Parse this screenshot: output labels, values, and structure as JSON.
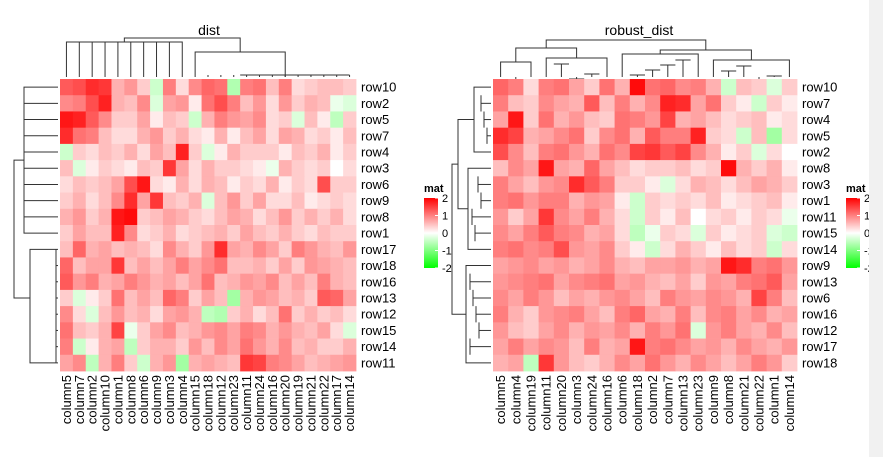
{
  "panels": [
    {
      "title": "dist",
      "rows": [
        "row10",
        "row2",
        "row5",
        "row7",
        "row4",
        "row3",
        "row6",
        "row9",
        "row8",
        "row1",
        "row17",
        "row18",
        "row16",
        "row13",
        "row12",
        "row15",
        "row14",
        "row11"
      ],
      "columns": [
        "column5",
        "column7",
        "column2",
        "column10",
        "column1",
        "column8",
        "column6",
        "column9",
        "column3",
        "column4",
        "column15",
        "column18",
        "column12",
        "column23",
        "column11",
        "column24",
        "column16",
        "column20",
        "column19",
        "column21",
        "column22",
        "column17",
        "column14"
      ]
    },
    {
      "title": "robust_dist",
      "rows": [
        "row10",
        "row7",
        "row4",
        "row5",
        "row2",
        "row8",
        "row3",
        "row1",
        "row11",
        "row15",
        "row14",
        "row9",
        "row13",
        "row6",
        "row16",
        "row12",
        "row17",
        "row18"
      ],
      "columns": [
        "column5",
        "column4",
        "column19",
        "column11",
        "column20",
        "column3",
        "column24",
        "column16",
        "column6",
        "column18",
        "column2",
        "column7",
        "column13",
        "column23",
        "column9",
        "column8",
        "column21",
        "column22",
        "column1",
        "column14"
      ]
    }
  ],
  "legend": {
    "title": "mat",
    "ticks": [
      "2",
      "1",
      "0",
      "-1",
      "-2"
    ],
    "colors": {
      "high": "#ff0000",
      "mid": "#ffffff",
      "low": "#00ff00"
    }
  },
  "chart_data": [
    {
      "type": "heatmap",
      "title": "dist",
      "rows": [
        "row10",
        "row2",
        "row5",
        "row7",
        "row4",
        "row3",
        "row6",
        "row9",
        "row8",
        "row1",
        "row17",
        "row18",
        "row16",
        "row13",
        "row12",
        "row15",
        "row14",
        "row11"
      ],
      "columns": [
        "column5",
        "column7",
        "column2",
        "column10",
        "column1",
        "column8",
        "column6",
        "column9",
        "column3",
        "column4",
        "column15",
        "column18",
        "column12",
        "column23",
        "column11",
        "column24",
        "column16",
        "column20",
        "column19",
        "column21",
        "column22",
        "column17",
        "column14"
      ],
      "values": [
        [
          1.2,
          1.3,
          1.6,
          1.5,
          0.5,
          0.7,
          0.3,
          -0.3,
          0.9,
          0.2,
          0.8,
          1.1,
          1.0,
          -0.5,
          0.9,
          1.0,
          0.4,
          0.9,
          0.2,
          0.3,
          0.4,
          0.4,
          0.3
        ],
        [
          0.8,
          0.9,
          1.3,
          1.7,
          0.5,
          0.4,
          0.8,
          -0.2,
          0.6,
          0.7,
          0.1,
          1.0,
          1.3,
          0.9,
          0.4,
          0.7,
          0.2,
          0.7,
          0.3,
          0.5,
          0.4,
          -0.1,
          -0.2
        ],
        [
          1.8,
          1.7,
          1.2,
          0.8,
          0.3,
          0.3,
          0.6,
          0.1,
          0.4,
          0.3,
          -0.3,
          0.5,
          0.9,
          0.7,
          0.6,
          0.8,
          0.2,
          0.3,
          -0.2,
          0.4,
          0.1,
          -0.4,
          0.3
        ],
        [
          1.6,
          1.0,
          0.9,
          0.4,
          0.2,
          0.2,
          0.5,
          0.7,
          0.3,
          0.5,
          0.2,
          0.1,
          0.5,
          0.1,
          0.4,
          0.6,
          0.2,
          0.6,
          0.5,
          0.2,
          0.3,
          0.1,
          0.4
        ],
        [
          -0.3,
          0.3,
          0.2,
          0.4,
          0.3,
          0.5,
          0.2,
          0.6,
          0.4,
          1.7,
          0.3,
          -0.2,
          0.1,
          0.5,
          0.3,
          0.3,
          0.3,
          0.1,
          0.4,
          0.3,
          0.5,
          0.1,
          0.3
        ],
        [
          0.4,
          -0.2,
          0.1,
          0.3,
          0.2,
          0.1,
          0.4,
          0.3,
          1.5,
          0.6,
          0.2,
          0.5,
          0.3,
          0.3,
          0.2,
          0.1,
          -0.1,
          0.5,
          0.3,
          0.2,
          0.3,
          0.0,
          0.2
        ],
        [
          0.2,
          0.4,
          0.3,
          0.4,
          0.6,
          1.3,
          1.8,
          0.2,
          0.1,
          0.5,
          0.2,
          0.5,
          0.4,
          0.1,
          0.3,
          0.2,
          0.5,
          0.1,
          0.3,
          0.2,
          1.3,
          0.3,
          0.3
        ],
        [
          0.3,
          0.5,
          0.2,
          0.4,
          0.8,
          1.6,
          0.6,
          1.5,
          0.4,
          0.3,
          0.5,
          -0.2,
          0.4,
          0.7,
          0.3,
          0.6,
          0.2,
          0.2,
          0.4,
          0.1,
          0.2,
          0.3,
          0.2
        ],
        [
          0.5,
          0.7,
          0.3,
          0.5,
          1.8,
          1.9,
          0.3,
          0.4,
          0.6,
          0.5,
          0.3,
          0.2,
          0.4,
          0.6,
          0.5,
          0.2,
          0.4,
          0.7,
          0.3,
          0.5,
          0.3,
          0.5,
          0.2
        ],
        [
          0.3,
          0.6,
          0.4,
          0.4,
          1.7,
          0.8,
          0.2,
          0.3,
          0.5,
          0.2,
          0.3,
          0.4,
          0.5,
          0.3,
          0.6,
          0.4,
          0.3,
          0.5,
          0.3,
          0.2,
          0.4,
          0.3,
          0.3
        ],
        [
          0.4,
          1.1,
          0.5,
          0.6,
          0.4,
          0.5,
          0.4,
          0.2,
          0.8,
          0.5,
          0.3,
          0.7,
          1.6,
          0.6,
          0.5,
          0.8,
          0.6,
          0.3,
          0.9,
          0.7,
          0.5,
          0.4,
          0.7
        ],
        [
          1.1,
          0.4,
          0.6,
          0.6,
          1.5,
          0.4,
          0.6,
          0.4,
          0.6,
          0.9,
          0.6,
          0.8,
          1.0,
          0.4,
          0.4,
          0.5,
          0.3,
          0.6,
          0.3,
          0.7,
          0.6,
          0.5,
          0.4
        ],
        [
          1.2,
          0.7,
          0.9,
          0.5,
          0.6,
          0.9,
          0.7,
          0.5,
          0.6,
          0.4,
          0.6,
          1.0,
          0.4,
          0.5,
          0.7,
          0.6,
          0.8,
          0.4,
          0.6,
          0.4,
          0.9,
          0.5,
          0.4
        ],
        [
          0.3,
          -0.2,
          0.1,
          0.3,
          1.0,
          0.4,
          0.6,
          0.4,
          1.1,
          0.9,
          0.3,
          0.6,
          0.4,
          -0.6,
          0.5,
          0.7,
          0.6,
          0.4,
          0.5,
          0.3,
          1.2,
          1.1,
          0.6
        ],
        [
          0.8,
          0.2,
          -0.2,
          0.4,
          0.7,
          0.4,
          0.5,
          0.2,
          0.6,
          0.7,
          0.5,
          -0.4,
          -0.5,
          0.3,
          0.5,
          0.2,
          0.4,
          1.0,
          0.3,
          0.5,
          0.3,
          0.4,
          0.2
        ],
        [
          1.0,
          0.4,
          0.3,
          0.5,
          1.4,
          -0.1,
          0.3,
          0.6,
          0.8,
          0.4,
          0.5,
          0.7,
          0.8,
          0.6,
          0.9,
          0.8,
          0.5,
          0.7,
          0.5,
          0.4,
          0.6,
          0.2,
          -0.2
        ],
        [
          0.9,
          -0.3,
          0.1,
          0.5,
          0.6,
          -0.4,
          0.3,
          0.5,
          0.5,
          0.3,
          0.7,
          0.4,
          0.8,
          0.6,
          1.0,
          0.7,
          0.5,
          0.8,
          0.4,
          0.5,
          0.3,
          0.3,
          0.5
        ],
        [
          0.6,
          0.8,
          -0.4,
          0.5,
          0.9,
          0.3,
          -0.3,
          0.5,
          0.7,
          -0.6,
          0.5,
          0.6,
          0.5,
          0.4,
          1.5,
          1.4,
          0.9,
          0.8,
          0.6,
          0.4,
          0.5,
          0.6,
          0.7
        ]
      ],
      "color_range": [
        -2,
        2
      ]
    },
    {
      "type": "heatmap",
      "title": "robust_dist",
      "rows": [
        "row10",
        "row7",
        "row4",
        "row5",
        "row2",
        "row8",
        "row3",
        "row1",
        "row11",
        "row15",
        "row14",
        "row9",
        "row13",
        "row6",
        "row16",
        "row12",
        "row17",
        "row18"
      ],
      "columns": [
        "column5",
        "column4",
        "column19",
        "column11",
        "column20",
        "column3",
        "column24",
        "column16",
        "column6",
        "column18",
        "column2",
        "column7",
        "column13",
        "column23",
        "column9",
        "column8",
        "column21",
        "column22",
        "column1",
        "column14"
      ],
      "values": [
        [
          1.1,
          0.9,
          0.2,
          0.9,
          1.0,
          0.6,
          0.3,
          1.0,
          0.5,
          1.9,
          1.0,
          1.1,
          0.8,
          0.9,
          0.5,
          -0.3,
          0.4,
          0.3,
          -0.2,
          0.3
        ],
        [
          0.9,
          0.4,
          0.3,
          0.8,
          0.6,
          0.5,
          1.2,
          0.4,
          0.9,
          0.5,
          0.8,
          1.7,
          1.6,
          0.6,
          1.0,
          0.3,
          0.1,
          -0.3,
          0.3,
          0.1
        ],
        [
          0.6,
          1.8,
          0.3,
          1.0,
          0.5,
          0.7,
          0.4,
          0.3,
          1.0,
          0.9,
          0.7,
          1.4,
          0.5,
          0.6,
          0.4,
          0.2,
          0.3,
          0.4,
          0.1,
          0.2
        ],
        [
          1.6,
          1.4,
          0.5,
          0.6,
          0.8,
          1.0,
          0.3,
          0.8,
          1.0,
          0.5,
          1.2,
          0.9,
          0.9,
          1.7,
          0.3,
          0.2,
          -0.3,
          0.4,
          -0.6,
          0.2
        ],
        [
          1.3,
          0.8,
          0.4,
          0.9,
          1.0,
          0.7,
          0.5,
          1.0,
          0.8,
          1.4,
          1.5,
          1.2,
          1.4,
          0.8,
          0.5,
          0.1,
          0.3,
          -0.2,
          0.2,
          0.0
        ],
        [
          0.4,
          0.8,
          0.6,
          1.8,
          0.6,
          0.5,
          1.1,
          0.6,
          0.4,
          0.2,
          0.3,
          0.3,
          0.4,
          0.2,
          0.3,
          1.9,
          0.5,
          0.3,
          0.5,
          0.1
        ],
        [
          0.9,
          0.6,
          0.4,
          0.7,
          0.8,
          1.6,
          1.2,
          0.9,
          0.3,
          0.3,
          0.1,
          -0.2,
          0.2,
          0.5,
          0.4,
          0.2,
          0.4,
          0.6,
          0.5,
          0.3
        ],
        [
          0.9,
          1.0,
          0.7,
          0.9,
          0.9,
          0.5,
          0.7,
          0.6,
          0.1,
          -0.3,
          0.3,
          0.2,
          0.3,
          0.2,
          0.4,
          0.1,
          0.2,
          0.3,
          0.4,
          0.1
        ],
        [
          0.7,
          0.3,
          0.6,
          1.5,
          0.8,
          0.6,
          0.9,
          0.5,
          0.2,
          -0.3,
          0.3,
          0.1,
          0.4,
          0.0,
          0.2,
          0.3,
          0.1,
          0.3,
          0.2,
          -0.1
        ],
        [
          0.8,
          0.6,
          0.9,
          1.2,
          0.9,
          0.8,
          0.5,
          0.6,
          0.2,
          -0.4,
          -0.1,
          0.3,
          0.2,
          -0.2,
          0.3,
          0.1,
          0.2,
          0.3,
          -0.2,
          -0.3
        ],
        [
          0.9,
          1.0,
          0.8,
          0.9,
          1.3,
          0.7,
          0.6,
          0.8,
          0.3,
          0.1,
          -0.3,
          0.2,
          0.5,
          0.3,
          0.1,
          0.4,
          0.2,
          0.3,
          -0.3,
          0.2
        ],
        [
          0.6,
          0.7,
          0.8,
          0.6,
          0.7,
          0.5,
          0.6,
          0.8,
          0.5,
          0.4,
          0.6,
          0.6,
          0.7,
          0.5,
          0.6,
          1.8,
          1.6,
          0.9,
          1.0,
          0.7
        ],
        [
          0.7,
          0.8,
          0.9,
          1.0,
          0.6,
          0.8,
          0.9,
          1.0,
          0.6,
          0.7,
          0.5,
          0.4,
          0.6,
          0.3,
          0.7,
          0.6,
          0.9,
          1.0,
          1.2,
          0.6
        ],
        [
          0.8,
          0.6,
          0.9,
          0.7,
          0.4,
          0.6,
          0.5,
          0.7,
          0.8,
          0.6,
          0.4,
          0.9,
          0.7,
          0.6,
          0.8,
          0.7,
          0.5,
          1.4,
          0.9,
          0.4
        ],
        [
          0.9,
          0.5,
          0.3,
          0.7,
          0.8,
          0.9,
          0.6,
          0.4,
          0.9,
          1.1,
          0.6,
          0.5,
          0.9,
          0.4,
          0.8,
          0.9,
          0.6,
          0.8,
          0.5,
          0.6
        ],
        [
          0.7,
          0.4,
          0.3,
          0.6,
          0.8,
          0.5,
          0.7,
          0.6,
          0.8,
          0.5,
          0.9,
          0.7,
          1.0,
          -0.2,
          0.7,
          0.9,
          0.6,
          0.5,
          0.8,
          0.4
        ],
        [
          0.6,
          0.9,
          0.6,
          0.8,
          0.7,
          0.4,
          0.9,
          0.5,
          0.6,
          1.8,
          0.9,
          1.0,
          0.8,
          0.6,
          0.7,
          0.5,
          0.8,
          0.6,
          0.5,
          0.7
        ],
        [
          0.5,
          0.6,
          -0.4,
          1.5,
          0.7,
          0.4,
          0.3,
          0.5,
          0.8,
          0.6,
          1.0,
          0.7,
          0.5,
          0.8,
          0.6,
          0.4,
          0.6,
          0.9,
          0.7,
          0.3
        ]
      ],
      "color_range": [
        -2,
        2
      ]
    }
  ]
}
